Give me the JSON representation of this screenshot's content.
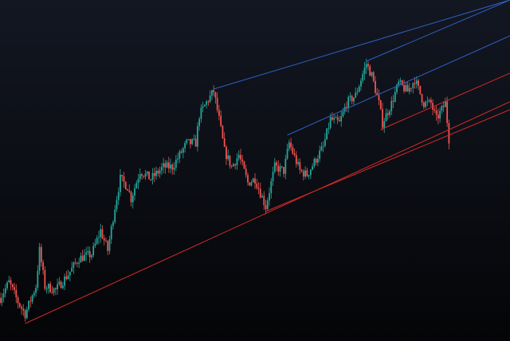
{
  "chart_data": {
    "type": "candlestick",
    "title": "",
    "xlabel": "",
    "ylabel": "",
    "axes_visible": false,
    "grid": false,
    "xlim": [
      0,
      284
    ],
    "ylim": [
      0,
      42.9
    ],
    "colors": {
      "background_top": "#131722",
      "background_bottom": "#040507",
      "up": "#26a69a",
      "down": "#ef5350",
      "trendline_blue": "#2f5fc4",
      "trendline_red": "#d42a2a"
    },
    "price_path": [
      [
        0,
        5.4
      ],
      [
        5,
        7.4
      ],
      [
        10,
        4.9
      ],
      [
        14,
        3.4
      ],
      [
        20,
        6.9
      ],
      [
        22,
        11.4
      ],
      [
        25,
        6.9
      ],
      [
        31,
        6.4
      ],
      [
        38,
        8.4
      ],
      [
        44,
        10.4
      ],
      [
        51,
        10.9
      ],
      [
        56,
        13.9
      ],
      [
        60,
        11.4
      ],
      [
        64,
        16.9
      ],
      [
        67,
        20.4
      ],
      [
        71,
        19.4
      ],
      [
        73,
        17.9
      ],
      [
        78,
        21.4
      ],
      [
        84,
        20.4
      ],
      [
        91,
        21.9
      ],
      [
        96,
        21.9
      ],
      [
        100,
        23.4
      ],
      [
        104,
        24.9
      ],
      [
        109,
        24.9
      ],
      [
        111,
        28.4
      ],
      [
        116,
        30.4
      ],
      [
        119,
        31.4
      ],
      [
        122,
        27.9
      ],
      [
        125,
        23.9
      ],
      [
        129,
        21.9
      ],
      [
        133,
        23.4
      ],
      [
        138,
        19.9
      ],
      [
        142,
        20.4
      ],
      [
        148,
        16.9
      ],
      [
        153,
        21.9
      ],
      [
        158,
        21.4
      ],
      [
        161,
        24.9
      ],
      [
        167,
        21.4
      ],
      [
        171,
        20.9
      ],
      [
        176,
        22.9
      ],
      [
        180,
        24.4
      ],
      [
        184,
        27.9
      ],
      [
        189,
        27.4
      ],
      [
        193,
        29.9
      ],
      [
        198,
        30.9
      ],
      [
        204,
        34.9
      ],
      [
        207,
        33.4
      ],
      [
        211,
        29.9
      ],
      [
        213,
        27.4
      ],
      [
        218,
        29.9
      ],
      [
        222,
        32.4
      ],
      [
        227,
        31.4
      ],
      [
        231,
        32.9
      ],
      [
        236,
        29.9
      ],
      [
        240,
        29.9
      ],
      [
        243,
        27.9
      ],
      [
        248,
        29.9
      ],
      [
        250,
        25.4
      ]
    ],
    "trendlines": [
      {
        "color": "blue",
        "from": [
          119,
          31.7
        ],
        "to": [
          284,
          42.9
        ]
      },
      {
        "color": "blue",
        "from": [
          204,
          35.2
        ],
        "to": [
          284,
          42.9
        ]
      },
      {
        "color": "blue",
        "from": [
          160,
          25.9
        ],
        "to": [
          284,
          38.4
        ]
      },
      {
        "color": "red",
        "from": [
          212,
          26.6
        ],
        "to": [
          284,
          33.7
        ]
      },
      {
        "color": "red",
        "from": [
          14,
          2.2
        ],
        "to": [
          284,
          30.1
        ]
      },
      {
        "color": "red",
        "from": [
          148,
          16.3
        ],
        "to": [
          284,
          29.1
        ]
      }
    ]
  }
}
